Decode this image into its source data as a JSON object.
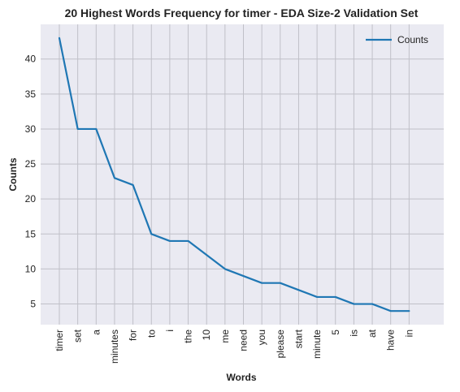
{
  "chart_data": {
    "type": "line",
    "title": "20 Highest Words Frequency for timer - EDA Size-2 Validation Set",
    "xlabel": "Words",
    "ylabel": "Counts",
    "categories": [
      "timer",
      "set",
      "a",
      "minutes",
      "for",
      "to",
      "i",
      "the",
      "10",
      "me",
      "need",
      "you",
      "please",
      "start",
      "minute",
      "5",
      "is",
      "at",
      "have",
      "in"
    ],
    "series": [
      {
        "name": "Counts",
        "values": [
          43,
          30,
          30,
          23,
          22,
          15,
          14,
          14,
          12,
          10,
          9,
          8,
          8,
          7,
          6,
          6,
          5,
          5,
          4,
          4
        ]
      }
    ],
    "ylim": [
      2.05,
      44.95
    ],
    "yticks": [
      5,
      10,
      15,
      20,
      25,
      30,
      35,
      40
    ],
    "grid": true,
    "legend_position": "top-right",
    "colors": {
      "line": "#1f77b4",
      "plot_bg": "#eaeaf2",
      "grid": "#c0c0c8"
    }
  }
}
